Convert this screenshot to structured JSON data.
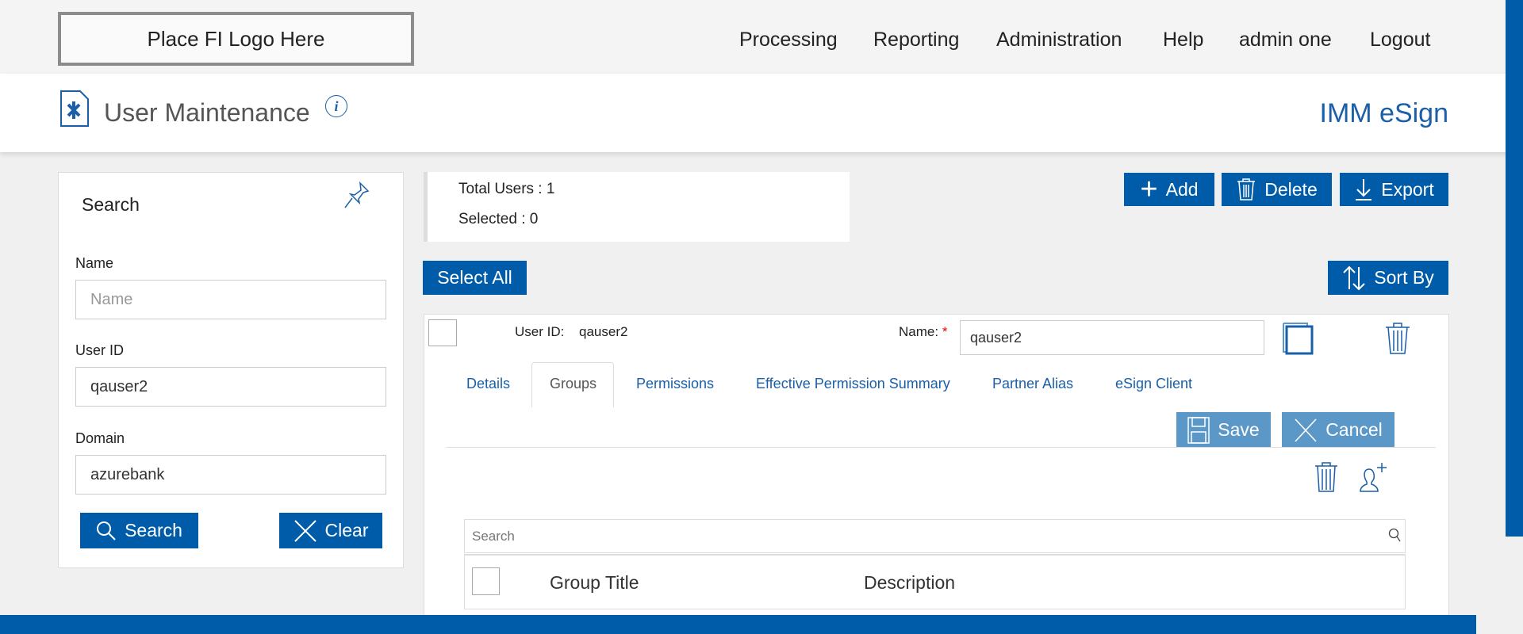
{
  "logo": {
    "text": "Place FI Logo Here"
  },
  "nav": [
    "Processing",
    "Reporting",
    "Administration",
    "Help",
    "admin one",
    "Logout"
  ],
  "header": {
    "title": "User Maintenance",
    "brand": "IMM eSign"
  },
  "search_panel": {
    "title": "Search",
    "name_label": "Name",
    "name_placeholder": "Name",
    "name_value": "",
    "userid_label": "User ID",
    "userid_value": "qauser2",
    "domain_label": "Domain",
    "domain_value": "azurebank",
    "search_btn": "Search",
    "clear_btn": "Clear"
  },
  "stats": {
    "total": "Total Users : 1",
    "selected": "Selected : 0"
  },
  "toolbar": {
    "add": "Add",
    "delete": "Delete",
    "export": "Export",
    "select_all": "Select All",
    "sort_by": "Sort By"
  },
  "user": {
    "userid_label": "User ID:",
    "userid_value": "qauser2",
    "name_label": "Name:",
    "required": "*",
    "name_value": "qauser2"
  },
  "tabs": [
    "Details",
    "Groups",
    "Permissions",
    "Effective Permission Summary",
    "Partner Alias",
    "eSign Client"
  ],
  "active_tab": "Groups",
  "actions": {
    "save": "Save",
    "cancel": "Cancel"
  },
  "groups_table": {
    "search_placeholder": "Search",
    "columns": [
      "Group Title",
      "Description"
    ]
  },
  "colors": {
    "primary": "#005ca8",
    "light": "#5b97c7",
    "link": "#1a5fa8"
  }
}
